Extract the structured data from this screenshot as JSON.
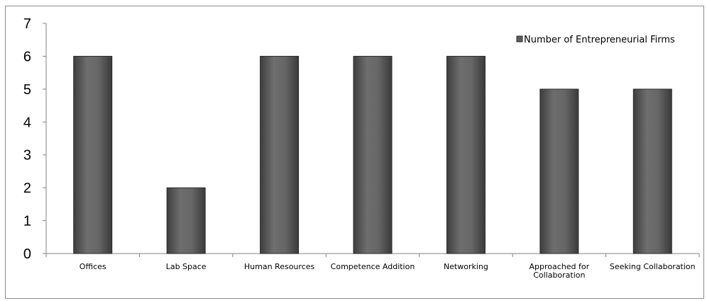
{
  "chart_data": {
    "type": "bar",
    "categories": [
      "Offices",
      "Lab Space",
      "Human Resources",
      "Competence Addition",
      "Networking",
      "Approached for Collaboration",
      "Seeking Collaboration"
    ],
    "category_lines": [
      [
        "Offices"
      ],
      [
        "Lab Space"
      ],
      [
        "Human Resources"
      ],
      [
        "Competence Addition"
      ],
      [
        "Networking"
      ],
      [
        "Approached for",
        "Collaboration"
      ],
      [
        "Seeking Collaboration"
      ]
    ],
    "series": [
      {
        "name": "Number of Entrepreneurial Firms",
        "values": [
          6,
          2,
          6,
          6,
          6,
          5,
          5
        ]
      }
    ],
    "yticks": [
      "0",
      "1",
      "2",
      "3",
      "4",
      "5",
      "6",
      "7"
    ],
    "ylim": [
      0,
      7
    ],
    "grid": false,
    "legend_position": "top-right",
    "colors": {
      "bar": "#5e5e5e",
      "bar_edge": "#2b2b2b",
      "axis": "#808080"
    }
  }
}
